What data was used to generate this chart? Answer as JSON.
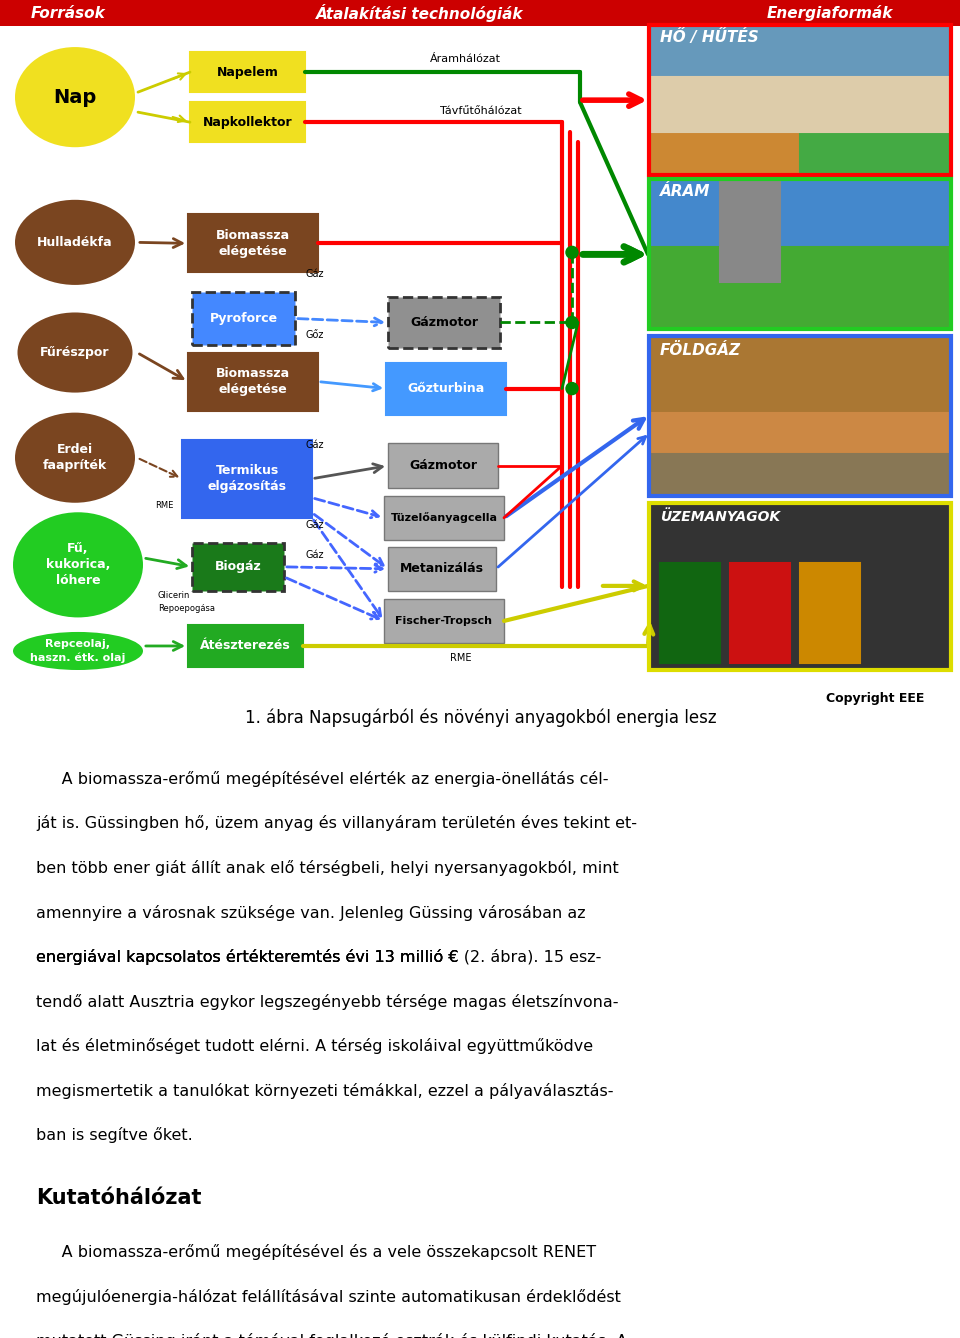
{
  "background_color": "#ffffff",
  "header_bg": "#cc0000",
  "copyright_text": "Copyright EEE",
  "caption_text": "1. ábra Napsugárból és növényi anyagokból energia lesz",
  "para1_lines": [
    "     A biomassza-erőmű megépítésével elérték az energia-önellátás cél-",
    "ját is. Güssingben hő, üzem anyag és villanyáram területén éves tekint et-",
    "ben több ener giát állít anak elő térségbeli, helyi nyersanyagokból, mint",
    "amennyire a városnak szüksége van. Jelenleg Güssing városában az",
    "energiával kapcsolatos értékteremtés évi 13 millió € (2. ábra). 15 esz-",
    "tendő alatt Ausztria egykor legszegényebb térsége magas életszínvona-",
    "lat és életminőséget tudott elérni. A térség iskoláival együttműködve",
    "megismertetik a tanulókat környezeti témákkal, ezzel a pályaválasztás-",
    "ban is segítve őket."
  ],
  "para1_italic_line": 4,
  "para1_italic_start": "(2. ábra)",
  "section_title": "Kutatóhálózat",
  "para2_lines": [
    "     A biomassza-erőmű megépítésével és a vele összekapcsolt RENET",
    "megújulóenergia-hálózat felállításával szinte automatikusan érdeklődést",
    "mutatott Güssing iránt a témával foglalkozó osztrák és külfindi kutatás. A"
  ]
}
